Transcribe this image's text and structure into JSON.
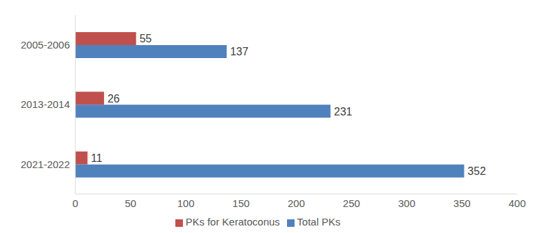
{
  "chart_data": {
    "type": "bar",
    "orientation": "horizontal",
    "categories": [
      "2005-2006",
      "2013-2014",
      "2021-2022"
    ],
    "series": [
      {
        "name": "PKs for Keratoconus",
        "color": "#c0504d",
        "values": [
          55,
          26,
          11
        ]
      },
      {
        "name": "Total PKs",
        "color": "#4f81bd",
        "values": [
          137,
          231,
          352
        ]
      }
    ],
    "xlim": [
      0,
      400
    ],
    "xticks": [
      0,
      50,
      100,
      150,
      200,
      250,
      300,
      350,
      400
    ],
    "data_labels": true,
    "legend": "bottom",
    "grid": false
  }
}
